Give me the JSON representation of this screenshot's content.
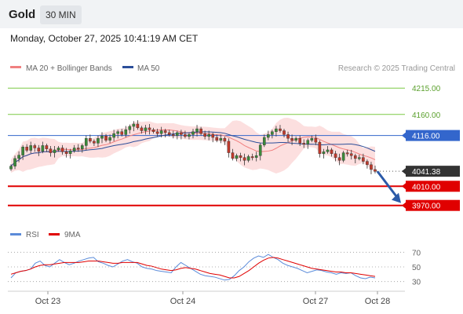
{
  "header": {
    "title": "Gold",
    "timeframe": "30 MIN"
  },
  "timestamp": "Monday, October 27, 2025 10:41:19 AM CET",
  "legend": {
    "ma20": "MA 20 + Bollinger Bands",
    "ma50": "MA 50",
    "credit": "Research © 2025 Trading Central"
  },
  "rsi_legend": {
    "rsi": "RSI",
    "ma": "9MA"
  },
  "colors": {
    "candle_up": "#3a8a3a",
    "candle_down": "#c0392b",
    "bollinger_fill": "#fcd9d9",
    "ma20": "#f08080",
    "ma50": "#2c4f9a",
    "support": "#e00000",
    "resistance": "#7ac943",
    "pivot": "#3366cc",
    "arrow": "#2b5aa8"
  },
  "chart_data": {
    "type": "candlestick",
    "ylim": [
      3940,
      4235
    ],
    "x_labels": [
      "Oct 23",
      "Oct 24",
      "Oct 27",
      "Oct 28"
    ],
    "ohlc_close": [
      4052,
      4068,
      4075,
      4092,
      4085,
      4095,
      4090,
      4083,
      4095,
      4088,
      4080,
      4086,
      4090,
      4082,
      4078,
      4084,
      4090,
      4088,
      4095,
      4110,
      4104,
      4100,
      4110,
      4115,
      4106,
      4112,
      4120,
      4124,
      4118,
      4128,
      4135,
      4140,
      4132,
      4126,
      4132,
      4128,
      4124,
      4120,
      4126,
      4122,
      4118,
      4116,
      4122,
      4118,
      4114,
      4118,
      4124,
      4130,
      4120,
      4114,
      4118,
      4112,
      4106,
      4110,
      4104,
      4080,
      4068,
      4074,
      4070,
      4064,
      4072,
      4070,
      4074,
      4096,
      4112,
      4118,
      4124,
      4130,
      4126,
      4118,
      4110,
      4106,
      4110,
      4100,
      4098,
      4106,
      4110,
      4102,
      4078,
      4082,
      4086,
      4078,
      4070,
      4064,
      4080,
      4078,
      4074,
      4068,
      4070,
      4062,
      4055,
      4045,
      4041
    ],
    "levels": [
      {
        "label": "4215.00",
        "value": 4215,
        "kind": "resistance"
      },
      {
        "label": "4160.00",
        "value": 4160,
        "kind": "resistance"
      },
      {
        "label": "4116.00",
        "value": 4116,
        "kind": "pivot"
      },
      {
        "label": "4041.38",
        "value": 4041.38,
        "kind": "last"
      },
      {
        "label": "4010.00",
        "value": 4010,
        "kind": "support"
      },
      {
        "label": "3970.00",
        "value": 3970,
        "kind": "support"
      }
    ],
    "rsi": {
      "ylim": [
        20,
        80
      ],
      "ticks": [
        "70",
        "50",
        "30"
      ],
      "tick_values": [
        70,
        50,
        30
      ],
      "values": [
        35,
        42,
        44,
        45,
        47,
        55,
        58,
        52,
        50,
        55,
        60,
        56,
        53,
        55,
        58,
        60,
        62,
        63,
        57,
        55,
        52,
        50,
        54,
        58,
        60,
        57,
        55,
        50,
        48,
        47,
        45,
        44,
        43,
        42,
        50,
        56,
        52,
        48,
        44,
        40,
        38,
        37,
        36,
        34,
        32,
        33,
        38,
        45,
        50,
        57,
        62,
        65,
        63,
        67,
        63,
        60,
        55,
        52,
        50,
        48,
        45,
        42,
        44,
        46,
        45,
        43,
        42,
        40,
        42,
        41,
        42,
        38,
        35,
        34,
        36,
        35
      ],
      "ma_values": [
        40,
        42,
        44,
        45,
        47,
        50,
        52,
        53,
        53,
        54,
        55,
        56,
        56,
        56,
        56,
        57,
        58,
        58,
        58,
        57,
        56,
        55,
        55,
        56,
        56,
        56,
        56,
        54,
        52,
        51,
        49,
        47,
        46,
        45,
        46,
        48,
        49,
        48,
        47,
        45,
        43,
        41,
        40,
        39,
        37,
        35,
        35,
        37,
        41,
        45,
        50,
        55,
        59,
        62,
        63,
        62,
        60,
        58,
        56,
        54,
        52,
        50,
        48,
        47,
        46,
        45,
        44,
        43,
        43,
        42,
        42,
        41,
        40,
        39,
        38,
        37
      ]
    }
  }
}
